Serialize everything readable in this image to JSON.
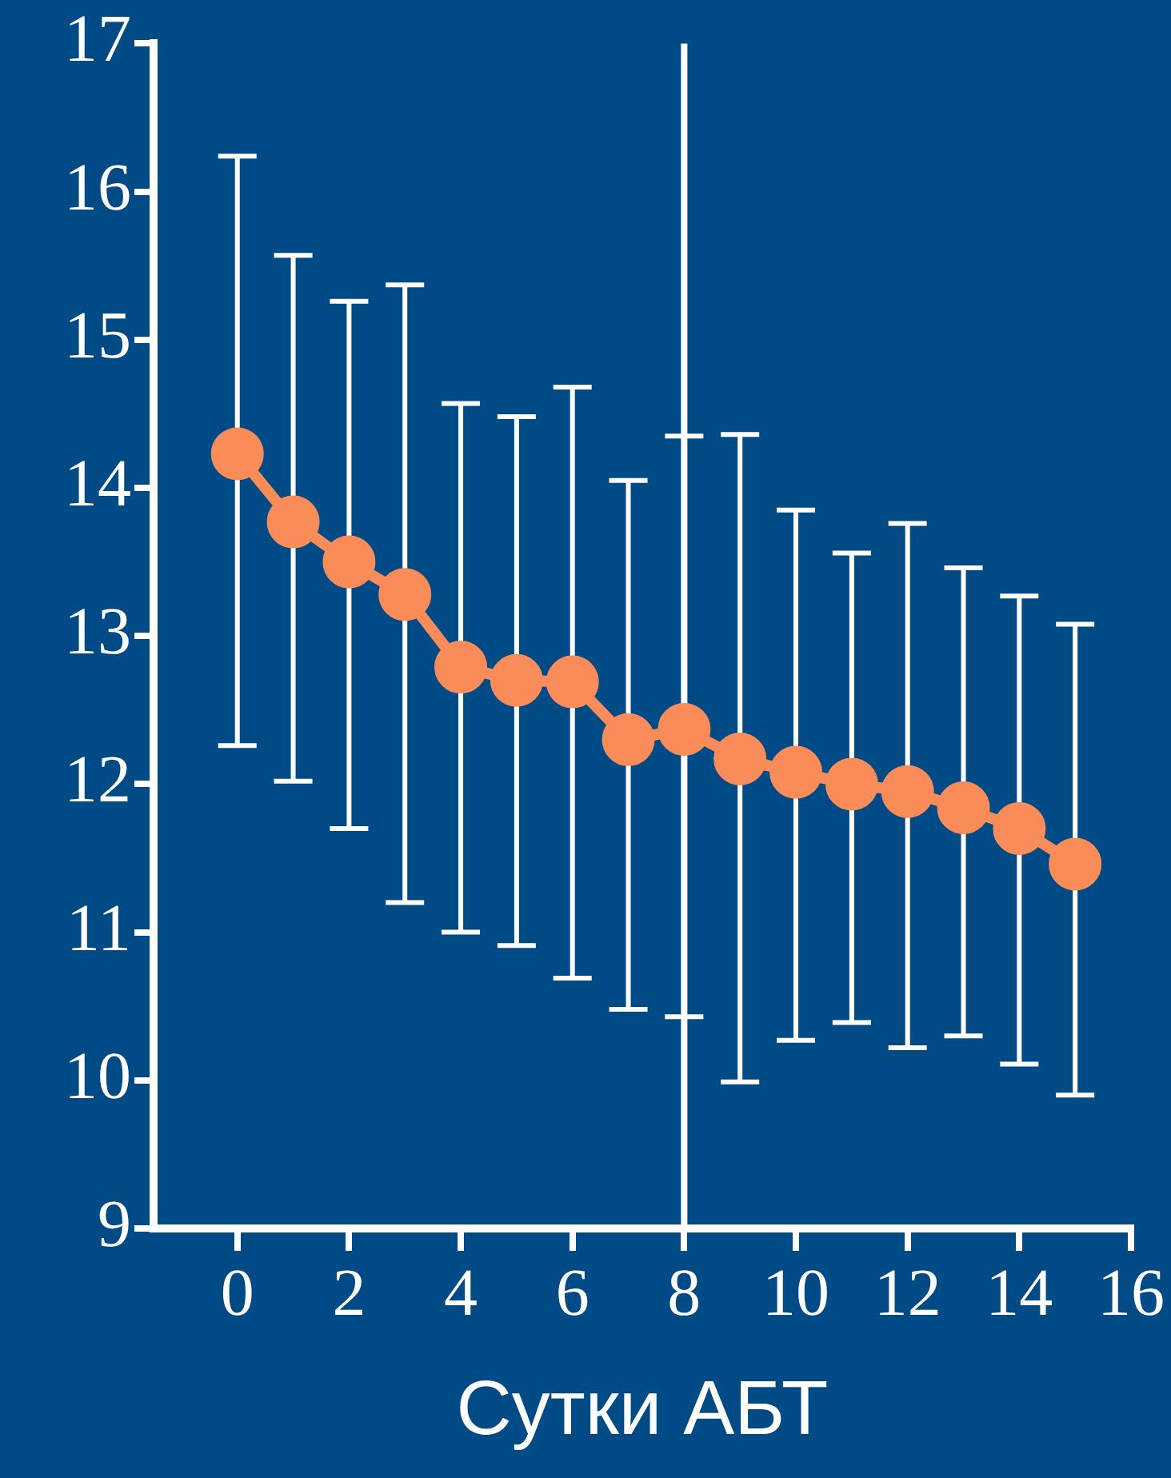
{
  "chart_data": {
    "type": "line",
    "xlabel": "Сутки АБТ",
    "x": [
      0,
      1,
      2,
      3,
      4,
      5,
      6,
      7,
      8,
      9,
      10,
      11,
      12,
      13,
      14,
      15
    ],
    "series": [
      {
        "color": "#f98c58",
        "values": [
          14.23,
          13.77,
          13.5,
          13.28,
          12.79,
          12.7,
          12.69,
          12.3,
          12.37,
          12.17,
          12.08,
          12.0,
          11.95,
          11.84,
          11.7,
          11.46
        ],
        "errors": [
          [
            12.26,
            16.24
          ],
          [
            12.02,
            15.57
          ],
          [
            11.7,
            15.26
          ],
          [
            11.2,
            15.37
          ],
          [
            11.0,
            14.57
          ],
          [
            10.91,
            14.48
          ],
          [
            10.69,
            14.68
          ],
          [
            10.48,
            14.05
          ],
          [
            10.43,
            14.35
          ],
          [
            9.99,
            14.36
          ],
          [
            10.27,
            13.85
          ],
          [
            10.39,
            13.56
          ],
          [
            10.22,
            13.76
          ],
          [
            10.3,
            13.46
          ],
          [
            10.11,
            13.27
          ],
          [
            9.9,
            13.08
          ]
        ]
      }
    ],
    "xlim": [
      -1.5,
      16
    ],
    "xticks": [
      0,
      2,
      4,
      6,
      8,
      10,
      12,
      14,
      16
    ],
    "ylim": [
      9,
      17
    ],
    "yticks": [
      9,
      10,
      11,
      12,
      13,
      14,
      15,
      16,
      17
    ],
    "ref_lines": [
      {
        "axis": "x",
        "value": 8,
        "color": "#ffffff"
      }
    ],
    "grid": false,
    "legend": false,
    "marker": "circle",
    "line_style": "solid"
  }
}
